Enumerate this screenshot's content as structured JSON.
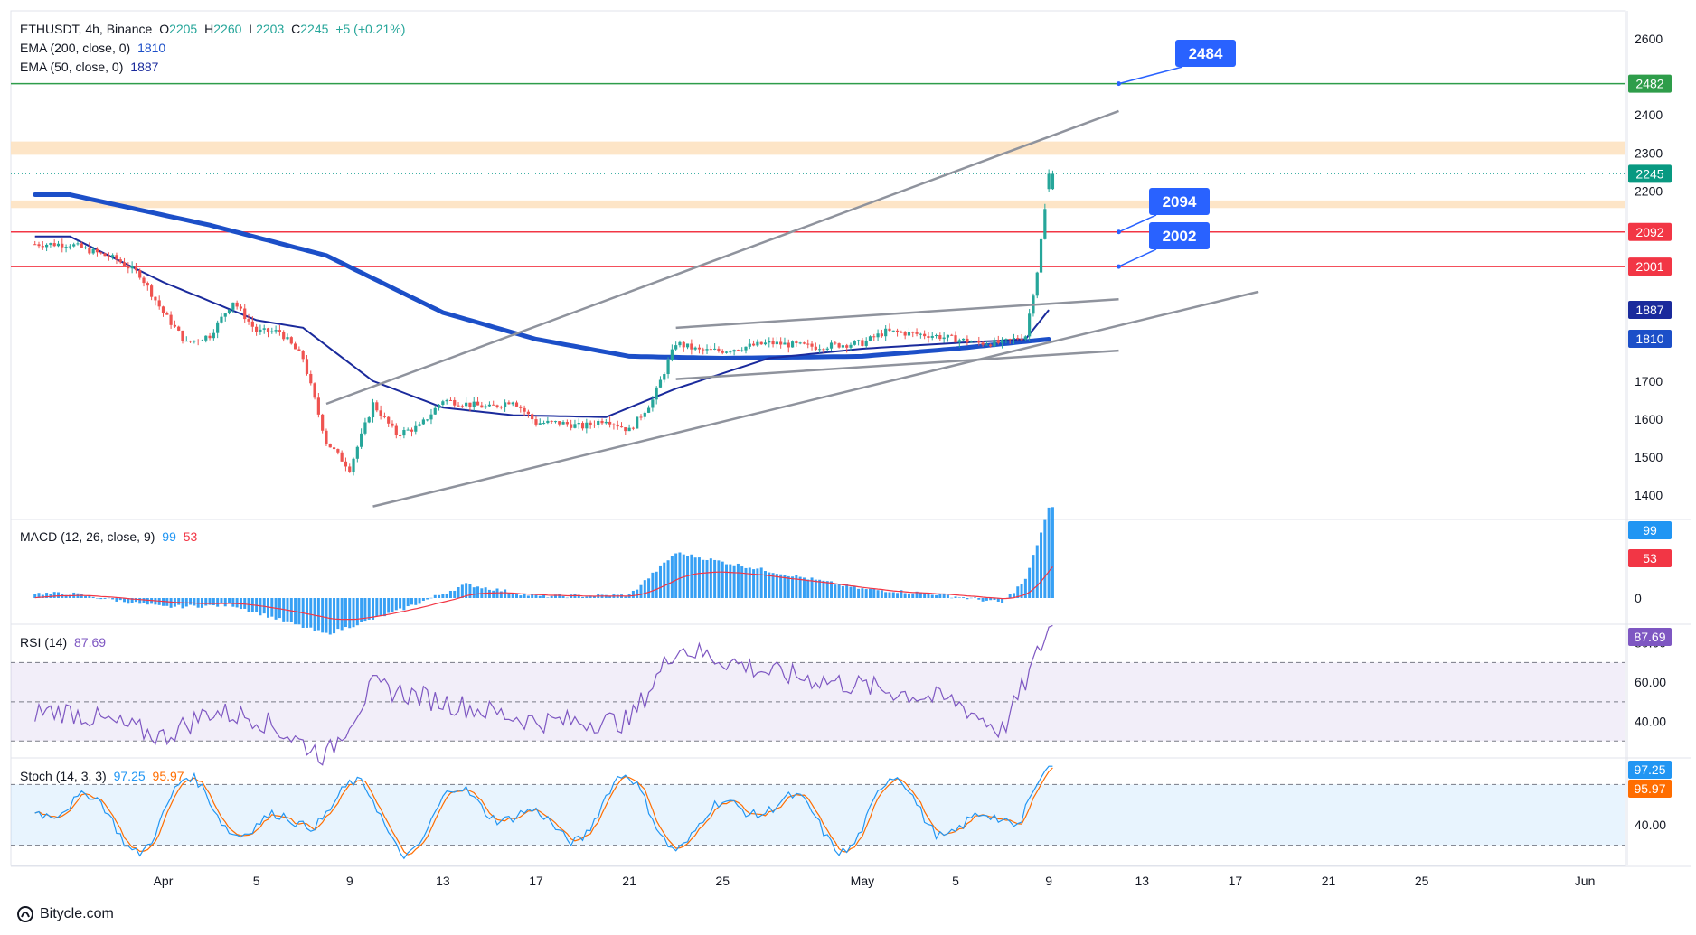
{
  "header": {
    "symbol": "ETHUSDT, 4h, Binance",
    "o_label": "O",
    "o_value": "2205",
    "h_label": "H",
    "h_value": "2260",
    "l_label": "L",
    "l_value": "2203",
    "c_label": "C",
    "c_value": "2245",
    "change": "+5 (+0.21%)",
    "ema200_label": "EMA (200, close, 0)",
    "ema200_value": "1810",
    "ema50_label": "EMA (50, close, 0)",
    "ema50_value": "1887"
  },
  "panels": {
    "macd": {
      "label": "MACD (12, 26, close, 9)",
      "macd_value": "99",
      "signal_value": "53"
    },
    "rsi": {
      "label": "RSI (14)",
      "value": "87.69"
    },
    "stoch": {
      "label": "Stoch (14, 3, 3)",
      "k_value": "97.25",
      "d_value": "95.97"
    }
  },
  "footer": {
    "brand": "Bitycle.com"
  },
  "colors": {
    "up": "#26a69a",
    "down": "#ef5350",
    "ema200": "#1c4fc8",
    "ema50": "#1a2a9c",
    "resistance": "#f23645",
    "target": "#2e9d4a",
    "zone": "#fde4c4",
    "callout": "#2962ff",
    "macd_hist": "#2196f3",
    "macd_signal": "#f23645",
    "rsi": "#7e57c2",
    "stoch_k": "#2196f3",
    "stoch_d": "#ff6d00"
  },
  "chart_data": [
    {
      "type": "candlestick",
      "pair": "ETHUSDT",
      "interval": "4h",
      "x_tick_labels": [
        "Apr",
        "5",
        "9",
        "13",
        "17",
        "21",
        "25",
        "May",
        "5",
        "9",
        "13",
        "17",
        "21",
        "25",
        "Jun"
      ],
      "y_tick_labels": [
        "1400",
        "1500",
        "1600",
        "1700",
        "2200",
        "2300",
        "2400",
        "2600"
      ],
      "ylim": [
        1330,
        2660
      ],
      "price_anchors": [
        [
          "Mar 28",
          2060
        ],
        [
          "Mar 30",
          2020
        ],
        [
          "Mar 31",
          1980
        ],
        [
          "Apr 1",
          1880
        ],
        [
          "Apr 2",
          1800
        ],
        [
          "Apr 3",
          1820
        ],
        [
          "Apr 4",
          1910
        ],
        [
          "Apr 5",
          1830
        ],
        [
          "Apr 6",
          1830
        ],
        [
          "Apr 7",
          1760
        ],
        [
          "Apr 8",
          1540
        ],
        [
          "Apr 9",
          1470
        ],
        [
          "Apr 10",
          1640
        ],
        [
          "Apr 11",
          1560
        ],
        [
          "Apr 12",
          1580
        ],
        [
          "Apr 13",
          1650
        ],
        [
          "Apr 14",
          1640
        ],
        [
          "Apr 15",
          1630
        ],
        [
          "Apr 16",
          1650
        ],
        [
          "Apr 17",
          1590
        ],
        [
          "Apr 18",
          1590
        ],
        [
          "Apr 19",
          1580
        ],
        [
          "Apr 20",
          1600
        ],
        [
          "Apr 21",
          1570
        ],
        [
          "Apr 22",
          1650
        ],
        [
          "Apr 23",
          1800
        ],
        [
          "Apr 24",
          1780
        ],
        [
          "Apr 25",
          1780
        ],
        [
          "Apr 27",
          1800
        ],
        [
          "Apr 29",
          1790
        ],
        [
          "May 1",
          1800
        ],
        [
          "May 2",
          1830
        ],
        [
          "May 4",
          1820
        ],
        [
          "May 6",
          1800
        ],
        [
          "May 7",
          1800
        ],
        [
          "May 8",
          1820
        ],
        [
          "May 8 12:00",
          1990
        ],
        [
          "May 8 20:00",
          2150
        ],
        [
          "May 9",
          2245
        ]
      ],
      "last": {
        "open": 2205,
        "high": 2260,
        "low": 2203,
        "close": 2245,
        "change": 5,
        "change_pct": 0.21
      },
      "ema200_anchors": [
        [
          "Mar 28",
          2190
        ],
        [
          "Apr 3",
          2110
        ],
        [
          "Apr 8",
          2030
        ],
        [
          "Apr 13",
          1880
        ],
        [
          "Apr 17",
          1810
        ],
        [
          "Apr 21",
          1765
        ],
        [
          "Apr 25",
          1760
        ],
        [
          "May 1",
          1765
        ],
        [
          "May 5",
          1785
        ],
        [
          "May 9",
          1810
        ]
      ],
      "ema50_anchors": [
        [
          "Mar 28",
          2080
        ],
        [
          "Apr 1",
          1960
        ],
        [
          "Apr 5",
          1860
        ],
        [
          "Apr 7",
          1840
        ],
        [
          "Apr 10",
          1700
        ],
        [
          "Apr 13",
          1630
        ],
        [
          "Apr 16",
          1610
        ],
        [
          "Apr 20",
          1605
        ],
        [
          "Apr 23",
          1680
        ],
        [
          "Apr 27",
          1760
        ],
        [
          "May 1",
          1785
        ],
        [
          "May 5",
          1800
        ],
        [
          "May 8",
          1810
        ],
        [
          "May 9",
          1887
        ]
      ],
      "horizontal_levels": [
        {
          "price": 2482,
          "color": "green",
          "axis_label": "2482"
        },
        {
          "price": 2092,
          "color": "red",
          "axis_label": "2092"
        },
        {
          "price": 2001,
          "color": "red",
          "axis_label": "2001"
        }
      ],
      "zones": [
        [
          2295,
          2330
        ],
        [
          2155,
          2175
        ]
      ],
      "callouts": [
        "2484",
        "2094",
        "2002"
      ],
      "axis_badges": {
        "price": "2245",
        "ema50": "1887",
        "ema200": "1810"
      },
      "trendlines": [
        {
          "from": [
            "Apr 8",
            1640
          ],
          "to": [
            "May 12",
            2410
          ]
        },
        {
          "from": [
            "Apr 10",
            1370
          ],
          "to": [
            "May 18",
            1935
          ]
        },
        {
          "from": [
            "Apr 23",
            1840
          ],
          "to": [
            "May 12",
            1915
          ]
        },
        {
          "from": [
            "Apr 23",
            1705
          ],
          "to": [
            "May 12",
            1780
          ]
        }
      ]
    },
    {
      "type": "bar",
      "name": "MACD (12, 26, close, 9)",
      "y_tick_labels": [
        "0"
      ],
      "histogram_anchors": [
        [
          "Mar 28",
          5
        ],
        [
          "Apr 1",
          -10
        ],
        [
          "Apr 4",
          -8
        ],
        [
          "Apr 8",
          -40
        ],
        [
          "Apr 11",
          -15
        ],
        [
          "Apr 14",
          15
        ],
        [
          "Apr 17",
          2
        ],
        [
          "Apr 21",
          3
        ],
        [
          "Apr 23",
          50
        ],
        [
          "Apr 27",
          30
        ],
        [
          "May 1",
          10
        ],
        [
          "May 4",
          5
        ],
        [
          "May 7",
          -5
        ],
        [
          "May 8",
          20
        ],
        [
          "May 9",
          99
        ]
      ],
      "last": {
        "macd": 99,
        "signal": 53
      }
    },
    {
      "type": "line",
      "name": "RSI (14)",
      "y_tick_labels": [
        "80.00",
        "60.00",
        "40.00"
      ],
      "levels": [
        70,
        50,
        30
      ],
      "ylim": [
        20,
        90
      ],
      "anchors": [
        [
          "Mar 28",
          45
        ],
        [
          "Apr 1",
          32
        ],
        [
          "Apr 3",
          45
        ],
        [
          "Apr 5",
          42
        ],
        [
          "Apr 8",
          22
        ],
        [
          "Apr 10",
          58
        ],
        [
          "Apr 13",
          50
        ],
        [
          "Apr 17",
          40
        ],
        [
          "Apr 21",
          40
        ],
        [
          "Apr 23",
          78
        ],
        [
          "Apr 27",
          65
        ],
        [
          "May 1",
          58
        ],
        [
          "May 5",
          50
        ],
        [
          "May 7",
          35
        ],
        [
          "May 8",
          60
        ],
        [
          "May 9",
          87.69
        ]
      ],
      "last": 87.69
    },
    {
      "type": "line",
      "name": "Stoch (14, 3, 3)",
      "y_tick_labels": [
        "40.00"
      ],
      "levels": [
        80,
        20
      ],
      "ylim": [
        0,
        100
      ],
      "last": {
        "k": 97.25,
        "d": 95.97
      }
    }
  ]
}
